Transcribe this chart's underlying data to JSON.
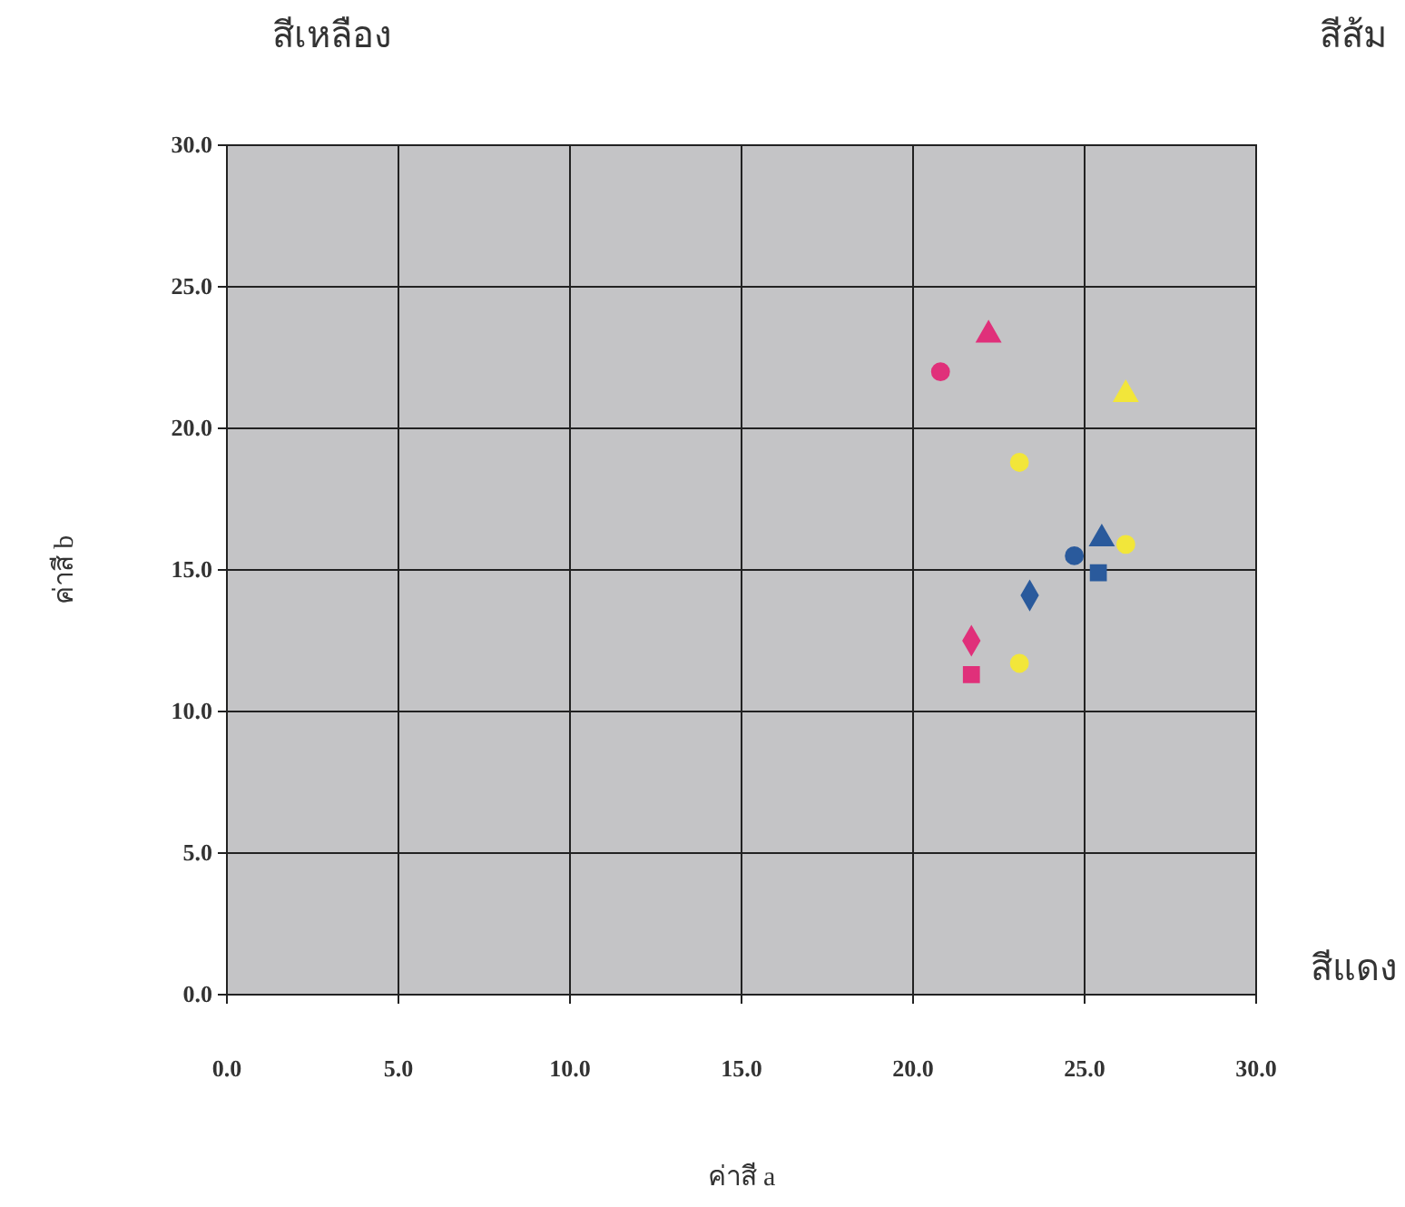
{
  "chart_data": {
    "type": "scatter",
    "xlabel": "ค่าสี a",
    "ylabel": "ค่าสี b",
    "annotations": [
      "สีเหลือง",
      "สีส้ม",
      "สีแดง"
    ],
    "xlim": [
      0,
      30
    ],
    "ylim": [
      0,
      30
    ],
    "xticks": [
      {
        "value": 0,
        "label": "0.0"
      },
      {
        "value": 5,
        "label": "5.0"
      },
      {
        "value": 10,
        "label": "10.0"
      },
      {
        "value": 15,
        "label": "15.0"
      },
      {
        "value": 20,
        "label": "20.0"
      },
      {
        "value": 25,
        "label": "25.0"
      },
      {
        "value": 30,
        "label": "30.0"
      }
    ],
    "yticks": [
      {
        "value": 0,
        "label": "0.0"
      },
      {
        "value": 5,
        "label": "5.0"
      },
      {
        "value": 10,
        "label": "10.0"
      },
      {
        "value": 15,
        "label": "15.0"
      },
      {
        "value": 20,
        "label": "20.0"
      },
      {
        "value": 25,
        "label": "25.0"
      },
      {
        "value": 30,
        "label": "30.0"
      }
    ],
    "grid": true,
    "series": [
      {
        "color": "#e0307a",
        "marker": "circle",
        "x": [
          20.8
        ],
        "values": [
          22.0
        ]
      },
      {
        "color": "#e0307a",
        "marker": "triangle",
        "x": [
          22.2
        ],
        "values": [
          23.3
        ]
      },
      {
        "color": "#e0307a",
        "marker": "diamond",
        "x": [
          21.7
        ],
        "values": [
          12.5
        ]
      },
      {
        "color": "#e0307a",
        "marker": "square",
        "x": [
          21.7
        ],
        "values": [
          11.3
        ]
      },
      {
        "color": "#2a5a9c",
        "marker": "circle",
        "x": [
          24.7
        ],
        "values": [
          15.5
        ]
      },
      {
        "color": "#2a5a9c",
        "marker": "triangle",
        "x": [
          25.5
        ],
        "values": [
          16.1
        ]
      },
      {
        "color": "#2a5a9c",
        "marker": "square",
        "x": [
          25.4
        ],
        "values": [
          14.9
        ]
      },
      {
        "color": "#2a5a9c",
        "marker": "diamond",
        "x": [
          23.4
        ],
        "values": [
          14.1
        ]
      },
      {
        "color": "#f2e63a",
        "marker": "circle",
        "x": [
          23.1,
          26.2,
          23.1
        ],
        "values": [
          18.8,
          15.9,
          11.7
        ]
      },
      {
        "color": "#f2e63a",
        "marker": "triangle",
        "x": [
          26.2
        ],
        "values": [
          21.2
        ]
      }
    ]
  }
}
